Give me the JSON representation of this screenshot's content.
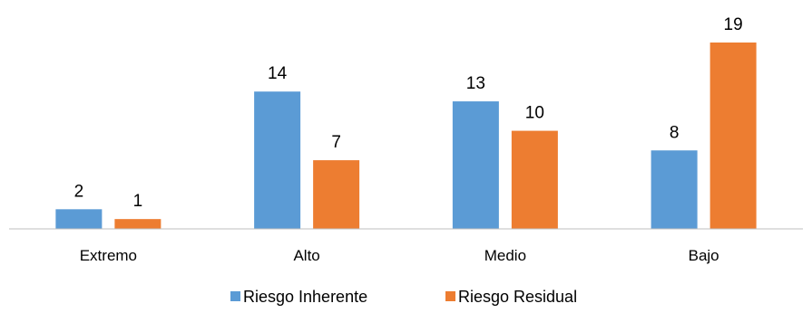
{
  "chart_data": {
    "type": "bar",
    "categories": [
      "Extremo",
      "Alto",
      "Medio",
      "Bajo"
    ],
    "series": [
      {
        "name": "Riesgo Inherente",
        "color": "#5B9BD5",
        "values": [
          2,
          14,
          13,
          8
        ]
      },
      {
        "name": "Riesgo Residual",
        "color": "#ED7D31",
        "values": [
          1,
          7,
          10,
          19
        ]
      }
    ],
    "title": "",
    "xlabel": "",
    "ylabel": "",
    "ylim": [
      0,
      19
    ],
    "grid": false,
    "legend": "bottom",
    "axis_color": "#BFBFBF"
  }
}
